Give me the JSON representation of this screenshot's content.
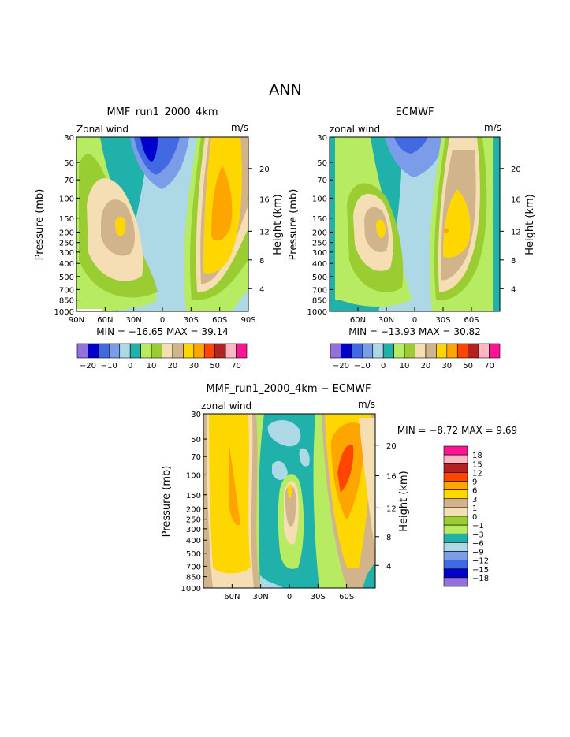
{
  "title": "ANN",
  "panel1": {
    "title": "MMF_run1_2000_4km",
    "subtitle_left": "Zonal wind",
    "subtitle_right": "m/s",
    "ylabel": "Pressure (mb)",
    "ylabel_right": "Height (km)",
    "y_ticks": [
      "30",
      "50",
      "70",
      "100",
      "150",
      "200",
      "250",
      "300",
      "400",
      "500",
      "700",
      "850",
      "1000"
    ],
    "height_ticks": [
      "20",
      "16",
      "12",
      "8",
      "4"
    ],
    "x_ticks": [
      "90N",
      "60N",
      "30N",
      "0",
      "30S",
      "60S",
      "90S"
    ],
    "stats": "MIN = −16.65   MAX =   39.14",
    "colorbar_labels": [
      "−20",
      "−10",
      "0",
      "10",
      "20",
      "30",
      "50",
      "70"
    ]
  },
  "panel2": {
    "title": "ECMWF",
    "subtitle_left": "zonal wind",
    "subtitle_right": "m/s",
    "ylabel": "Pressure (mb)",
    "ylabel_right": "Height (km)",
    "y_ticks": [
      "30",
      "50",
      "70",
      "100",
      "150",
      "200",
      "250",
      "300",
      "400",
      "500",
      "700",
      "850",
      "1000"
    ],
    "height_ticks": [
      "20",
      "16",
      "12",
      "8",
      "4"
    ],
    "x_ticks": [
      "30N",
      "0",
      "30S",
      "60S"
    ],
    "x_ticks_extra": "60N",
    "stats": "MIN = −13.93   MAX =   30.82",
    "colorbar_labels": [
      "−20",
      "−10",
      "0",
      "10",
      "20",
      "30",
      "50",
      "70"
    ]
  },
  "panel3": {
    "title": "MMF_run1_2000_4km − ECMWF",
    "subtitle_left": "zonal wind",
    "subtitle_right": "m/s",
    "ylabel": "Pressure (mb)",
    "ylabel_right": "Height (km)",
    "y_ticks": [
      "30",
      "50",
      "70",
      "100",
      "150",
      "200",
      "250",
      "300",
      "400",
      "500",
      "700",
      "850",
      "1000"
    ],
    "height_ticks": [
      "20",
      "16",
      "12",
      "8",
      "4"
    ],
    "x_ticks": [
      "60N",
      "30N",
      "0",
      "30S",
      "60S"
    ],
    "stats": "MIN =   −8.72   MAX =    9.69",
    "colorbar_labels": [
      "18",
      "15",
      "12",
      "9",
      "6",
      "3",
      "1",
      "0",
      "−1",
      "−3",
      "−6",
      "−9",
      "−12",
      "−15",
      "−18"
    ]
  },
  "colors": {
    "c1": "#9370DB",
    "c2": "#0000CD",
    "c3": "#4169E1",
    "c4": "#7B9CE8",
    "c5": "#ADD8E6",
    "c6": "#20B2AA",
    "c7": "#B7EB61",
    "c8": "#9ACD32",
    "c9": "#F5DEB3",
    "c10": "#D2B48C",
    "c11": "#FFD700",
    "c12": "#FFA500",
    "c13": "#FF4500",
    "c14": "#B22222",
    "c15": "#FFB6C1",
    "c16": "#FF1493"
  },
  "chart_data": [
    {
      "type": "heatmap",
      "title": "MMF_run1_2000_4km",
      "xlabel": "",
      "ylabel": "Pressure (mb)",
      "x_ticks": [
        "90N",
        "60N",
        "30N",
        "0",
        "30S",
        "60S",
        "90S"
      ],
      "y_ticks": [
        30,
        50,
        70,
        100,
        150,
        200,
        250,
        300,
        400,
        500,
        700,
        850,
        1000
      ],
      "ylim": [
        1000,
        30
      ],
      "min": -16.65,
      "max": 39.14,
      "contour_levels": [
        -20,
        -15,
        -10,
        -5,
        0,
        5,
        10,
        15,
        20,
        25,
        30,
        40,
        50,
        60,
        70
      ]
    },
    {
      "type": "heatmap",
      "title": "ECMWF",
      "xlabel": "",
      "ylabel": "Pressure (mb)",
      "x_ticks": [
        "60N",
        "30N",
        "0",
        "30S",
        "60S"
      ],
      "y_ticks": [
        30,
        50,
        70,
        100,
        150,
        200,
        250,
        300,
        400,
        500,
        700,
        850,
        1000
      ],
      "ylim": [
        1000,
        30
      ],
      "min": -13.93,
      "max": 30.82,
      "contour_levels": [
        -20,
        -15,
        -10,
        -5,
        0,
        5,
        10,
        15,
        20,
        25,
        30,
        40,
        50,
        60,
        70
      ]
    },
    {
      "type": "heatmap",
      "title": "MMF_run1_2000_4km − ECMWF",
      "xlabel": "",
      "ylabel": "Pressure (mb)",
      "x_ticks": [
        "60N",
        "30N",
        "0",
        "30S",
        "60S"
      ],
      "y_ticks": [
        30,
        50,
        70,
        100,
        150,
        200,
        250,
        300,
        400,
        500,
        700,
        850,
        1000
      ],
      "ylim": [
        1000,
        30
      ],
      "min": -8.72,
      "max": 9.69,
      "contour_levels": [
        -18,
        -15,
        -12,
        -9,
        -6,
        -3,
        -1,
        0,
        1,
        3,
        6,
        9,
        12,
        15,
        18
      ]
    }
  ]
}
